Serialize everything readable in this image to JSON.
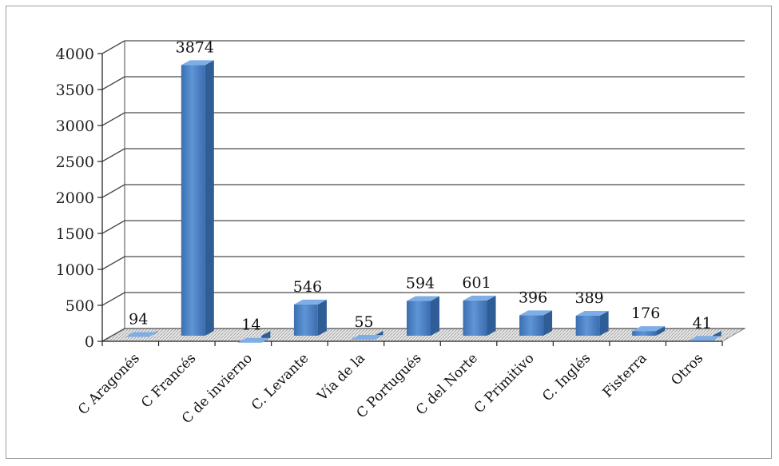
{
  "chart_data": {
    "type": "bar",
    "style": "3d-column",
    "categories": [
      "C Aragonés",
      "C Francés",
      "C de invierno",
      "C. Levante",
      "Vía de la",
      "C Portugués",
      "C del Norte",
      "C Primitivo",
      "C. Inglés",
      "Fisterra",
      "Otros"
    ],
    "values": [
      94,
      3874,
      14,
      546,
      55,
      594,
      601,
      396,
      389,
      176,
      41
    ],
    "title": "",
    "xlabel": "",
    "ylabel": "",
    "ylim": [
      0,
      4000
    ],
    "yticks": [
      0,
      500,
      1000,
      1500,
      2000,
      2500,
      3000,
      3500,
      4000
    ],
    "grid": true,
    "legend": "none",
    "data_labels": true,
    "bar_color": "#4f81bd"
  }
}
